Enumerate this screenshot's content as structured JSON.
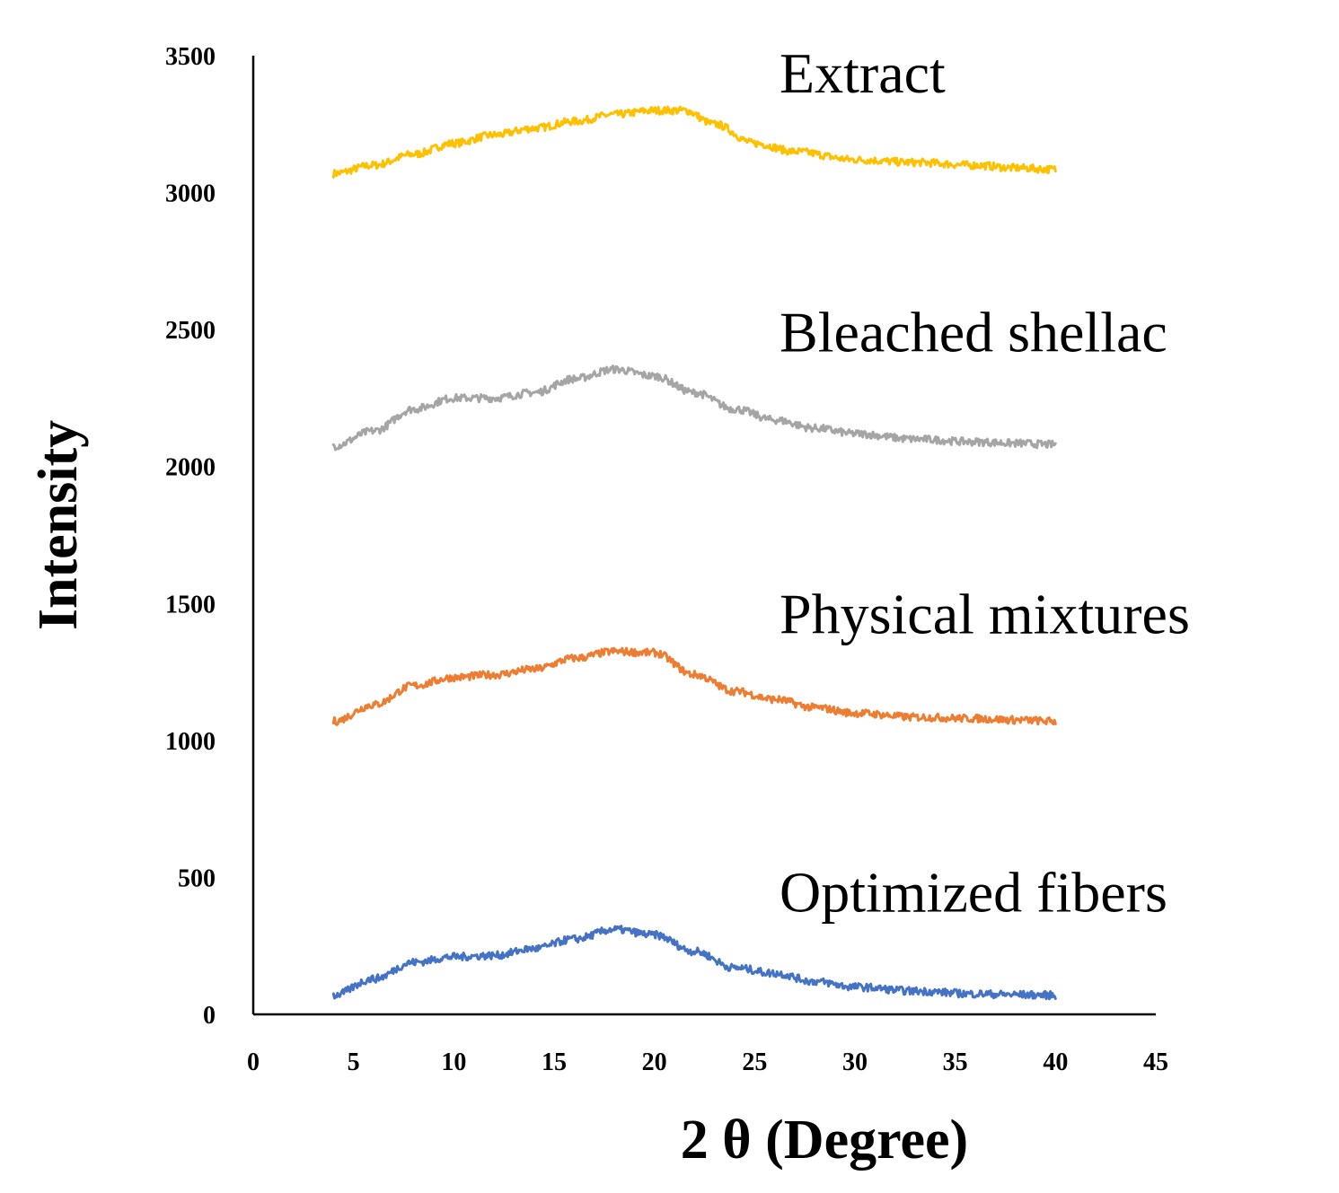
{
  "chart_data": {
    "type": "line",
    "title": "",
    "xlabel": "2 θ (Degree)",
    "ylabel": "Intensity",
    "xlim": [
      0,
      45
    ],
    "ylim": [
      0,
      3500
    ],
    "xticks": [
      0,
      5,
      10,
      15,
      20,
      25,
      30,
      35,
      40,
      45
    ],
    "xtick_labels": [
      "0",
      "5",
      "10",
      "15",
      "20",
      "25",
      "30",
      "35",
      "40",
      "45"
    ],
    "yticks": [
      0,
      500,
      1000,
      1500,
      2000,
      2500,
      3000,
      3500
    ],
    "ytick_labels": [
      "0",
      "500",
      "1000",
      "1500",
      "2000",
      "2500",
      "3000",
      "3500"
    ],
    "grid": false,
    "series": [
      {
        "name": "Extract",
        "color": "#FFC000",
        "x": [
          4,
          6,
          8,
          10,
          12,
          14,
          16,
          18,
          20,
          21.5,
          23,
          25,
          27,
          30,
          33,
          36,
          38,
          40
        ],
        "y": [
          3070,
          3100,
          3140,
          3180,
          3210,
          3235,
          3260,
          3285,
          3300,
          3300,
          3250,
          3180,
          3150,
          3120,
          3110,
          3100,
          3090,
          3085
        ]
      },
      {
        "name": "Bleached shellac",
        "color": "#A5A5A5",
        "x": [
          4,
          6,
          8,
          10,
          12,
          14,
          16,
          18,
          20,
          22,
          24,
          26,
          28,
          30,
          33,
          36,
          38,
          40
        ],
        "y": [
          2075,
          2130,
          2210,
          2250,
          2250,
          2270,
          2320,
          2355,
          2330,
          2270,
          2210,
          2170,
          2140,
          2120,
          2100,
          2090,
          2085,
          2080
        ]
      },
      {
        "name": "Physical mixtures",
        "color": "#ED7D31",
        "x": [
          4,
          6,
          8,
          10,
          12,
          14,
          16,
          18,
          20,
          22,
          24,
          26,
          28,
          30,
          33,
          36,
          38,
          40
        ],
        "y": [
          1070,
          1130,
          1200,
          1230,
          1240,
          1260,
          1300,
          1325,
          1320,
          1240,
          1180,
          1150,
          1120,
          1100,
          1085,
          1080,
          1075,
          1070
        ]
      },
      {
        "name": "Optimized fibers",
        "color": "#4472C4",
        "x": [
          4,
          6,
          8,
          10,
          12,
          14,
          16,
          18,
          20,
          22,
          24,
          26,
          28,
          30,
          33,
          36,
          38,
          40
        ],
        "y": [
          70,
          130,
          190,
          210,
          215,
          240,
          275,
          310,
          290,
          230,
          170,
          150,
          120,
          100,
          85,
          75,
          72,
          70
        ]
      }
    ]
  }
}
